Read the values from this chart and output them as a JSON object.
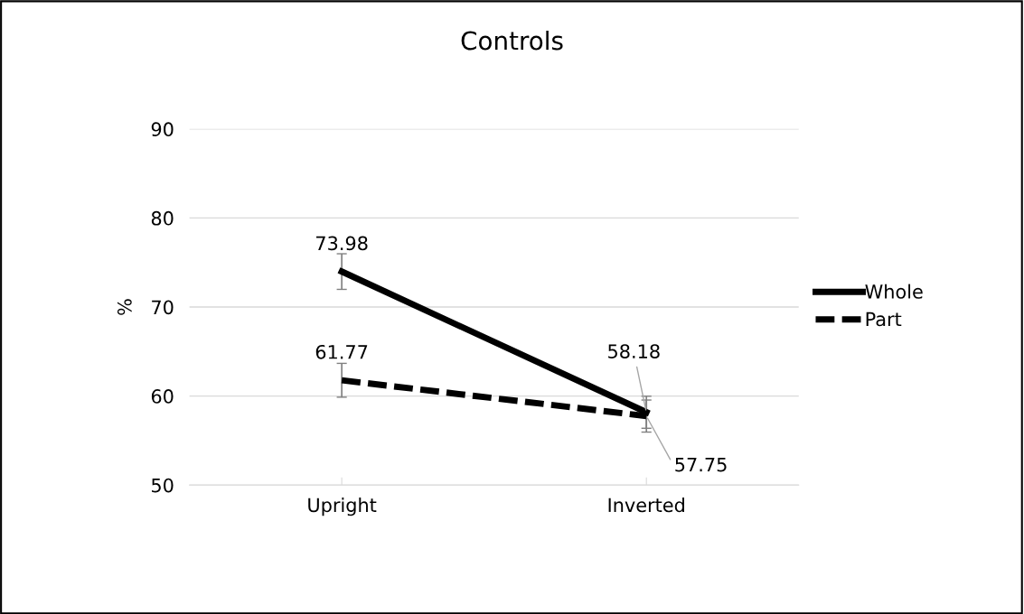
{
  "chart_data": {
    "type": "line",
    "title": "Controls",
    "ylabel": "%",
    "categories": [
      "Upright",
      "Inverted"
    ],
    "series": [
      {
        "name": "Whole",
        "color": "#000000",
        "line_style": "solid",
        "values": [
          73.98,
          58.18
        ],
        "errors": [
          2.0,
          1.8
        ]
      },
      {
        "name": "Part",
        "color": "#000000",
        "line_style": "dashed",
        "values": [
          61.77,
          57.75
        ],
        "errors": [
          1.9,
          1.8
        ]
      }
    ],
    "ylim": [
      50,
      90
    ],
    "yticks": [
      50,
      60,
      70,
      80,
      90
    ],
    "grid": "y",
    "legend": "right",
    "data_labels": true,
    "marker": "none"
  }
}
